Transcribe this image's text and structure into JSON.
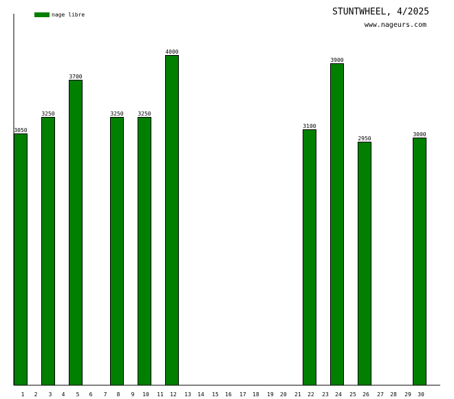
{
  "header": {
    "title": "STUNTWHEEL, 4/2025",
    "site": "www.nageurs.com"
  },
  "legend": {
    "label": "nage libre",
    "color": "#007f00"
  },
  "chart_data": {
    "type": "bar",
    "title": "STUNTWHEEL, 4/2025",
    "xlabel": "",
    "ylabel": "",
    "categories": [
      "1",
      "2",
      "3",
      "4",
      "5",
      "6",
      "7",
      "8",
      "9",
      "10",
      "11",
      "12",
      "13",
      "14",
      "15",
      "16",
      "17",
      "18",
      "19",
      "20",
      "21",
      "22",
      "23",
      "24",
      "25",
      "26",
      "27",
      "28",
      "29",
      "30"
    ],
    "series": [
      {
        "name": "nage libre",
        "color": "#007f00",
        "values": [
          3050,
          0,
          3250,
          0,
          3700,
          0,
          0,
          3250,
          0,
          3250,
          0,
          4000,
          0,
          0,
          0,
          0,
          0,
          0,
          0,
          0,
          0,
          3100,
          0,
          3900,
          0,
          2950,
          0,
          0,
          0,
          3000
        ]
      }
    ],
    "ylim": [
      0,
      4000
    ],
    "grid": false,
    "legend_position": "top-left"
  }
}
